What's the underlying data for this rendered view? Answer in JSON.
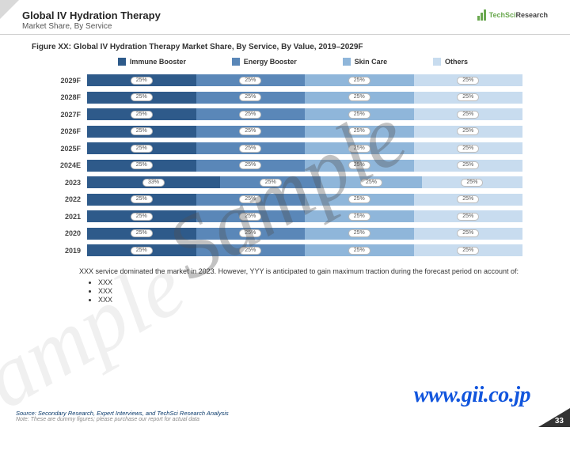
{
  "header": {
    "title": "Global IV Hydration Therapy",
    "subtitle": "Market Share, By Service",
    "logo_text_a": "TechSci",
    "logo_text_b": "Research"
  },
  "figure_title": "Figure XX: Global IV Hydration Therapy Market Share, By Service, By Value, 2019–2029F",
  "legend": [
    {
      "label": "Immune Booster",
      "color": "#2e5a8a"
    },
    {
      "label": "Energy Booster",
      "color": "#5a87b8"
    },
    {
      "label": "Skin Care",
      "color": "#8fb6da"
    },
    {
      "label": "Others",
      "color": "#c8dcef"
    }
  ],
  "chart": {
    "years": [
      "2029F",
      "2028F",
      "2027F",
      "2026F",
      "2025F",
      "2024E",
      "2023",
      "2022",
      "2021",
      "2020",
      "2019"
    ],
    "series_colors": [
      "#2e5a8a",
      "#5a87b8",
      "#8fb6da",
      "#c8dcef"
    ],
    "data": [
      [
        25,
        25,
        25,
        25
      ],
      [
        25,
        25,
        25,
        25
      ],
      [
        25,
        25,
        25,
        25
      ],
      [
        25,
        25,
        25,
        25
      ],
      [
        25,
        25,
        25,
        25
      ],
      [
        25,
        25,
        25,
        25
      ],
      [
        33,
        25,
        25,
        25
      ],
      [
        25,
        25,
        25,
        25
      ],
      [
        25,
        25,
        25,
        25
      ],
      [
        25,
        25,
        25,
        25
      ],
      [
        25,
        25,
        25,
        25
      ]
    ],
    "value_suffix": "%"
  },
  "notes": {
    "para": "XXX service dominated the market in 2023. However, YYY is anticipated to gain maximum traction during the forecast period on account of:",
    "bullets": [
      "XXX",
      "XXX",
      "XXX"
    ]
  },
  "footer": {
    "source": "Source: Secondary Research, Expert Interviews, and TechSci Research Analysis",
    "disclaimer": "Note: These are dummy figures; please purchase our report for actual data",
    "page": "33"
  },
  "watermarks": {
    "sample": "Sample",
    "url": "www.gii.co.jp"
  }
}
